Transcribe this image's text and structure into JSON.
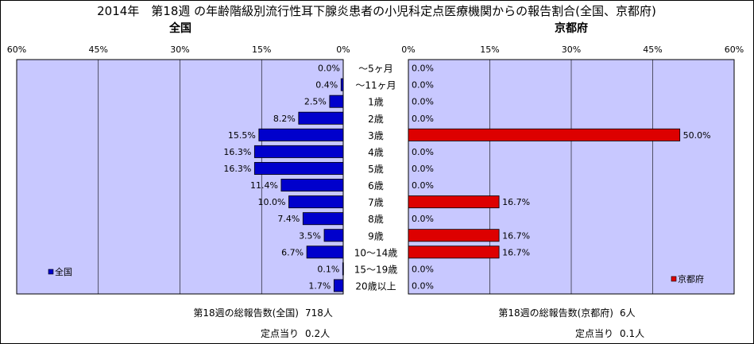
{
  "title": "2014年　第18週 の年齢階級別流行性耳下腺炎患者の小児科定点医療機関からの報告割合(全国、京都府)",
  "categories": [
    "～5ヶ月",
    "～11ヶ月",
    "1歳",
    "2歳",
    "3歳",
    "4歳",
    "5歳",
    "6歳",
    "7歳",
    "8歳",
    "9歳",
    "10～14歳",
    "15～19歳",
    "20歳以上"
  ],
  "chart_data": [
    {
      "type": "bar",
      "orientation": "horizontal",
      "direction": "right-to-left",
      "title": "全国",
      "categories": [
        "～5ヶ月",
        "～11ヶ月",
        "1歳",
        "2歳",
        "3歳",
        "4歳",
        "5歳",
        "6歳",
        "7歳",
        "8歳",
        "9歳",
        "10～14歳",
        "15～19歳",
        "20歳以上"
      ],
      "series": [
        {
          "name": "全国",
          "color": "#0000cc",
          "values": [
            0.0,
            0.4,
            2.5,
            8.2,
            15.5,
            16.3,
            16.3,
            11.4,
            10.0,
            7.4,
            3.5,
            6.7,
            0.1,
            1.7
          ]
        }
      ],
      "value_labels": [
        "0.0%",
        "0.4%",
        "2.5%",
        "8.2%",
        "15.5%",
        "16.3%",
        "16.3%",
        "11.4%",
        "10.0%",
        "7.4%",
        "3.5%",
        "6.7%",
        "0.1%",
        "1.7%"
      ],
      "xlim": [
        0,
        60
      ],
      "ticks": [
        60,
        45,
        30,
        15,
        0
      ],
      "tick_labels": [
        "60%",
        "45%",
        "30%",
        "15%",
        "0%"
      ],
      "grid": true,
      "legend_position": "bottom-left"
    },
    {
      "type": "bar",
      "orientation": "horizontal",
      "direction": "left-to-right",
      "title": "京都府",
      "categories": [
        "～5ヶ月",
        "～11ヶ月",
        "1歳",
        "2歳",
        "3歳",
        "4歳",
        "5歳",
        "6歳",
        "7歳",
        "8歳",
        "9歳",
        "10～14歳",
        "15～19歳",
        "20歳以上"
      ],
      "series": [
        {
          "name": "京都府",
          "color": "#dd0000",
          "values": [
            0.0,
            0.0,
            0.0,
            0.0,
            50.0,
            0.0,
            0.0,
            0.0,
            16.7,
            0.0,
            16.7,
            16.7,
            0.0,
            0.0
          ]
        }
      ],
      "value_labels": [
        "0.0%",
        "0.0%",
        "0.0%",
        "0.0%",
        "50.0%",
        "0.0%",
        "0.0%",
        "0.0%",
        "16.7%",
        "0.0%",
        "16.7%",
        "16.7%",
        "0.0%",
        "0.0%"
      ],
      "xlim": [
        0,
        60
      ],
      "ticks": [
        0,
        15,
        30,
        45,
        60
      ],
      "tick_labels": [
        "0%",
        "15%",
        "30%",
        "45%",
        "60%"
      ],
      "grid": true,
      "legend_position": "bottom-right"
    }
  ],
  "footer": {
    "national_total_label": "第18週の総報告数(全国)",
    "national_total_value": "718人",
    "national_per_label": "定点当り",
    "national_per_value": "0.2人",
    "kyoto_total_label": "第18週の総報告数(京都府)",
    "kyoto_total_value": "6人",
    "kyoto_per_label": "定点当り",
    "kyoto_per_value": "0.1人"
  }
}
